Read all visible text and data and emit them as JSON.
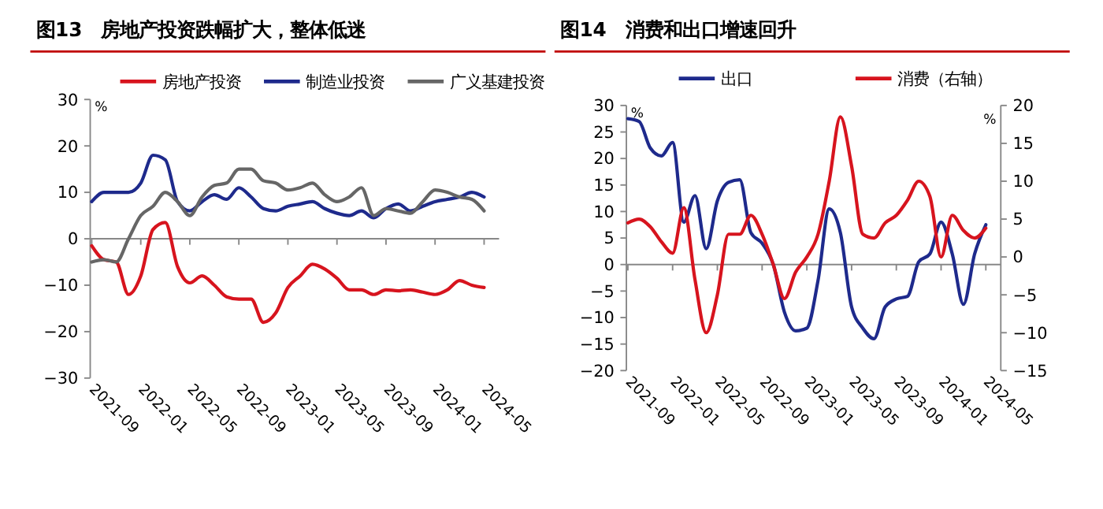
{
  "chart_data": [
    {
      "type": "line",
      "title": "图13　房地产投资跌幅扩大，整体低迷",
      "ylabel": "%",
      "legend": "top",
      "categories": [
        "2021-09",
        null,
        null,
        null,
        "2022-01",
        null,
        null,
        null,
        "2022-05",
        null,
        null,
        null,
        "2022-09",
        null,
        null,
        null,
        "2023-01",
        null,
        null,
        null,
        "2023-05",
        null,
        null,
        null,
        "2023-09",
        null,
        null,
        null,
        "2024-01",
        null,
        null,
        null,
        "2024-05"
      ],
      "ylim": [
        -30,
        30
      ],
      "yticks": [
        -30,
        -20,
        -10,
        0,
        10,
        20,
        30
      ],
      "series": [
        {
          "name": "房地产投资",
          "color": "#d7141e",
          "values": [
            -1.5,
            -4.5,
            -5,
            -12,
            -8,
            2,
            3.5,
            -6,
            -9.5,
            -8,
            -10,
            -12.5,
            -13,
            -13,
            -18,
            -16,
            -10.5,
            -8,
            -5.5,
            -6.5,
            -8.5,
            -11,
            -11,
            -12,
            -11,
            -11.2,
            -11,
            -11.5,
            -12,
            -11,
            -9,
            -10,
            -10.5
          ]
        },
        {
          "name": "制造业投资",
          "color": "#1e2a8c",
          "values": [
            8,
            10,
            10,
            10,
            12,
            18,
            17,
            8,
            6,
            8,
            9.5,
            8.5,
            11,
            9,
            6.5,
            6,
            7,
            7.5,
            8,
            6.5,
            5.5,
            5,
            6,
            4.5,
            6.5,
            7.5,
            6,
            7,
            8,
            8.5,
            9,
            10,
            9
          ]
        },
        {
          "name": "广义基建投资",
          "color": "#666666",
          "values": [
            -5,
            -4.5,
            -5,
            0,
            5,
            7,
            10,
            8,
            5,
            9,
            11.5,
            12,
            15,
            15,
            12.5,
            12,
            10.5,
            11,
            12,
            9.5,
            8,
            9,
            11,
            5,
            6.5,
            6,
            5.5,
            8,
            10.5,
            10,
            9,
            8.5,
            6
          ]
        }
      ]
    },
    {
      "type": "line",
      "title": "图14　消费和出口增速回升",
      "ylabel": "%",
      "y2label": "%",
      "legend": "top",
      "categories": [
        "2021-09",
        null,
        null,
        null,
        "2022-01",
        null,
        null,
        null,
        "2022-05",
        null,
        null,
        null,
        "2022-09",
        null,
        null,
        null,
        "2023-01",
        null,
        null,
        null,
        "2023-05",
        null,
        null,
        null,
        "2023-09",
        null,
        null,
        null,
        "2024-01",
        null,
        null,
        null,
        "2024-05"
      ],
      "ylim": [
        -20,
        30
      ],
      "yticks": [
        -20,
        -15,
        -10,
        -5,
        0,
        5,
        10,
        15,
        20,
        25,
        30
      ],
      "y2lim": [
        -15,
        20
      ],
      "y2ticks": [
        -15,
        -10,
        -5,
        0,
        5,
        10,
        15,
        20
      ],
      "series": [
        {
          "name": "出口",
          "color": "#1e2a8c",
          "values": [
            27.5,
            27,
            22,
            20.5,
            23,
            8,
            13,
            3,
            12,
            15.5,
            16,
            6,
            4,
            0,
            -9,
            -12.5,
            -12,
            -3,
            10.5,
            6,
            -8,
            -12,
            -14,
            -8,
            -6.5,
            -6,
            0.5,
            2,
            8,
            2,
            -7.5,
            2,
            7.5
          ]
        },
        {
          "name": "消费（右轴）",
          "color": "#d7141e",
          "axis": "y2",
          "values": [
            4.5,
            5,
            4,
            2,
            0.5,
            6.5,
            -3,
            -10,
            -5,
            3,
            3,
            5.5,
            3,
            -1,
            -5.5,
            -2,
            0,
            3,
            10,
            18.5,
            12,
            3,
            2.5,
            4.5,
            5.5,
            7.5,
            10,
            8,
            0,
            5.5,
            3.5,
            2.5,
            3.8
          ]
        }
      ]
    }
  ]
}
